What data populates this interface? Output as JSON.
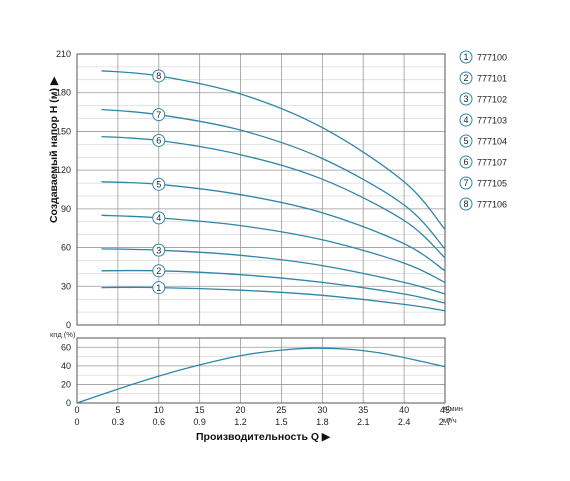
{
  "chart_data": [
    {
      "type": "line",
      "ylabel": "Создаваемый напор Н (м) ▶",
      "ylim": [
        0,
        210
      ],
      "yticks": [
        0,
        30,
        60,
        90,
        120,
        150,
        180,
        210
      ],
      "xlim": [
        0,
        45
      ],
      "grid": true,
      "legend_position": "right",
      "series": [
        {
          "name": "777100",
          "badge": "1",
          "x": [
            3,
            10,
            20,
            30,
            40,
            45
          ],
          "y": [
            29,
            29,
            27,
            23,
            16,
            11
          ]
        },
        {
          "name": "777101",
          "badge": "2",
          "x": [
            3,
            10,
            20,
            30,
            40,
            45
          ],
          "y": [
            42,
            42,
            39,
            33,
            24,
            17
          ]
        },
        {
          "name": "777102",
          "badge": "3",
          "x": [
            3,
            10,
            20,
            30,
            40,
            45
          ],
          "y": [
            59,
            58,
            54,
            46,
            33,
            24
          ]
        },
        {
          "name": "777103",
          "badge": "4",
          "x": [
            3,
            10,
            20,
            30,
            40,
            45
          ],
          "y": [
            85,
            83,
            77,
            66,
            48,
            33
          ]
        },
        {
          "name": "777104",
          "badge": "5",
          "x": [
            3,
            10,
            20,
            30,
            40,
            45
          ],
          "y": [
            111,
            109,
            101,
            87,
            63,
            42
          ]
        },
        {
          "name": "777107",
          "badge": "6",
          "x": [
            3,
            10,
            20,
            30,
            40,
            45
          ],
          "y": [
            146,
            143,
            132,
            113,
            81,
            52
          ]
        },
        {
          "name": "777105",
          "badge": "7",
          "x": [
            3,
            10,
            20,
            30,
            40,
            45
          ],
          "y": [
            167,
            163,
            151,
            129,
            93,
            59
          ]
        },
        {
          "name": "777106",
          "badge": "8",
          "x": [
            3,
            10,
            20,
            30,
            40,
            45
          ],
          "y": [
            197,
            193,
            179,
            153,
            111,
            74
          ]
        }
      ],
      "badge_x": 10
    },
    {
      "type": "line",
      "ylabel": "кпд (%)",
      "ylim": [
        0,
        70
      ],
      "yticks": [
        0,
        20,
        40,
        60
      ],
      "xlim": [
        0,
        45
      ],
      "grid": true,
      "series": [
        {
          "name": "",
          "x": [
            0,
            5,
            10,
            15,
            20,
            25,
            29,
            33,
            37,
            41,
            45
          ],
          "y": [
            0,
            15,
            29,
            41,
            51,
            57,
            59,
            58,
            54,
            47,
            39
          ]
        }
      ]
    }
  ],
  "x_axis_flow_lpm": {
    "unit": "л/мин",
    "ticks": [
      "0",
      "5",
      "10",
      "15",
      "20",
      "25",
      "30",
      "35",
      "40",
      "45"
    ]
  },
  "x_axis_flow_m3h": {
    "unit": "м³/ч",
    "ticks": [
      "0",
      "0.3",
      "0.6",
      "0.9",
      "1.2",
      "1.5",
      "1.8",
      "2.1",
      "2.4",
      "2.7"
    ]
  },
  "xlabel": "Производительность Q ▶",
  "colors": {
    "curve": "#2f86a8",
    "badge_stroke": "#2f86a8",
    "grid": "#9a9a9a",
    "text": "#222222"
  }
}
